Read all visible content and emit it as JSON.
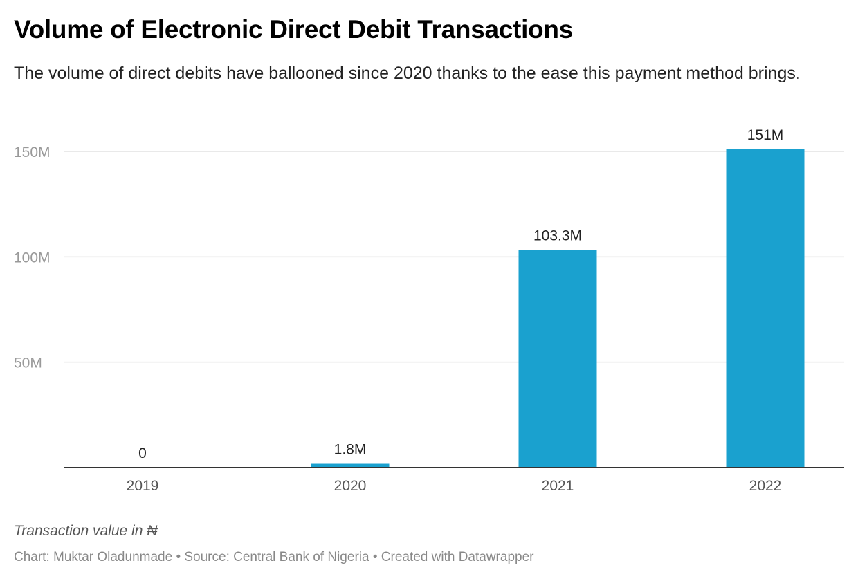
{
  "title": "Volume of Electronic Direct Debit Transactions",
  "subtitle": "The volume of direct debits have ballooned since 2020 thanks to the ease this payment method brings.",
  "note": "Transaction value in ₦",
  "footer": "Chart: Muktar Oladunmade • Source: Central Bank of Nigeria • Created with Datawrapper",
  "chart_data": {
    "type": "bar",
    "categories": [
      "2019",
      "2020",
      "2021",
      "2022"
    ],
    "values": [
      0,
      1.8,
      103.3,
      151
    ],
    "value_labels": [
      "0",
      "1.8M",
      "103.3M",
      "151M"
    ],
    "unit": "M",
    "ylim": [
      0,
      150
    ],
    "yticks": [
      50,
      100,
      150
    ],
    "ytick_labels": [
      "50M",
      "100M",
      "150M"
    ],
    "grid": true,
    "bar_color": "#1aa1cf"
  }
}
